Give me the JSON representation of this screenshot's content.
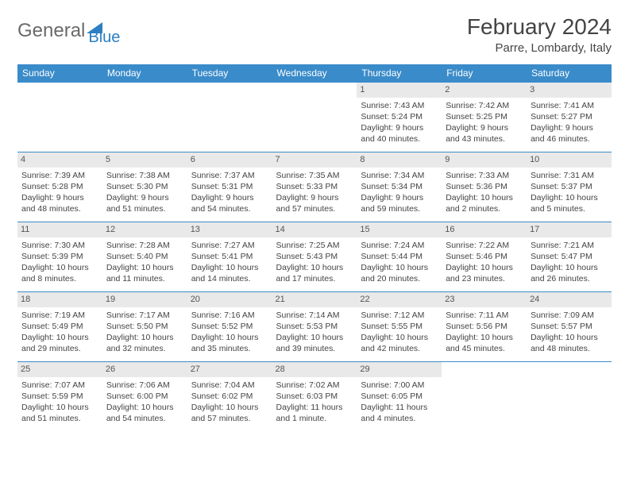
{
  "logo": {
    "part1": "General",
    "part2": "Blue"
  },
  "title": "February 2024",
  "location": "Parre, Lombardy, Italy",
  "colors": {
    "header_bg": "#3a8bc9",
    "header_text": "#ffffff",
    "daynum_bg": "#e9e9e9",
    "border": "#3a8bc9",
    "logo_blue": "#2d7fc1"
  },
  "weekdays": [
    "Sunday",
    "Monday",
    "Tuesday",
    "Wednesday",
    "Thursday",
    "Friday",
    "Saturday"
  ],
  "weeks": [
    [
      null,
      null,
      null,
      null,
      {
        "n": "1",
        "sunrise": "7:43 AM",
        "sunset": "5:24 PM",
        "daylight": "9 hours and 40 minutes."
      },
      {
        "n": "2",
        "sunrise": "7:42 AM",
        "sunset": "5:25 PM",
        "daylight": "9 hours and 43 minutes."
      },
      {
        "n": "3",
        "sunrise": "7:41 AM",
        "sunset": "5:27 PM",
        "daylight": "9 hours and 46 minutes."
      }
    ],
    [
      {
        "n": "4",
        "sunrise": "7:39 AM",
        "sunset": "5:28 PM",
        "daylight": "9 hours and 48 minutes."
      },
      {
        "n": "5",
        "sunrise": "7:38 AM",
        "sunset": "5:30 PM",
        "daylight": "9 hours and 51 minutes."
      },
      {
        "n": "6",
        "sunrise": "7:37 AM",
        "sunset": "5:31 PM",
        "daylight": "9 hours and 54 minutes."
      },
      {
        "n": "7",
        "sunrise": "7:35 AM",
        "sunset": "5:33 PM",
        "daylight": "9 hours and 57 minutes."
      },
      {
        "n": "8",
        "sunrise": "7:34 AM",
        "sunset": "5:34 PM",
        "daylight": "9 hours and 59 minutes."
      },
      {
        "n": "9",
        "sunrise": "7:33 AM",
        "sunset": "5:36 PM",
        "daylight": "10 hours and 2 minutes."
      },
      {
        "n": "10",
        "sunrise": "7:31 AM",
        "sunset": "5:37 PM",
        "daylight": "10 hours and 5 minutes."
      }
    ],
    [
      {
        "n": "11",
        "sunrise": "7:30 AM",
        "sunset": "5:39 PM",
        "daylight": "10 hours and 8 minutes."
      },
      {
        "n": "12",
        "sunrise": "7:28 AM",
        "sunset": "5:40 PM",
        "daylight": "10 hours and 11 minutes."
      },
      {
        "n": "13",
        "sunrise": "7:27 AM",
        "sunset": "5:41 PM",
        "daylight": "10 hours and 14 minutes."
      },
      {
        "n": "14",
        "sunrise": "7:25 AM",
        "sunset": "5:43 PM",
        "daylight": "10 hours and 17 minutes."
      },
      {
        "n": "15",
        "sunrise": "7:24 AM",
        "sunset": "5:44 PM",
        "daylight": "10 hours and 20 minutes."
      },
      {
        "n": "16",
        "sunrise": "7:22 AM",
        "sunset": "5:46 PM",
        "daylight": "10 hours and 23 minutes."
      },
      {
        "n": "17",
        "sunrise": "7:21 AM",
        "sunset": "5:47 PM",
        "daylight": "10 hours and 26 minutes."
      }
    ],
    [
      {
        "n": "18",
        "sunrise": "7:19 AM",
        "sunset": "5:49 PM",
        "daylight": "10 hours and 29 minutes."
      },
      {
        "n": "19",
        "sunrise": "7:17 AM",
        "sunset": "5:50 PM",
        "daylight": "10 hours and 32 minutes."
      },
      {
        "n": "20",
        "sunrise": "7:16 AM",
        "sunset": "5:52 PM",
        "daylight": "10 hours and 35 minutes."
      },
      {
        "n": "21",
        "sunrise": "7:14 AM",
        "sunset": "5:53 PM",
        "daylight": "10 hours and 39 minutes."
      },
      {
        "n": "22",
        "sunrise": "7:12 AM",
        "sunset": "5:55 PM",
        "daylight": "10 hours and 42 minutes."
      },
      {
        "n": "23",
        "sunrise": "7:11 AM",
        "sunset": "5:56 PM",
        "daylight": "10 hours and 45 minutes."
      },
      {
        "n": "24",
        "sunrise": "7:09 AM",
        "sunset": "5:57 PM",
        "daylight": "10 hours and 48 minutes."
      }
    ],
    [
      {
        "n": "25",
        "sunrise": "7:07 AM",
        "sunset": "5:59 PM",
        "daylight": "10 hours and 51 minutes."
      },
      {
        "n": "26",
        "sunrise": "7:06 AM",
        "sunset": "6:00 PM",
        "daylight": "10 hours and 54 minutes."
      },
      {
        "n": "27",
        "sunrise": "7:04 AM",
        "sunset": "6:02 PM",
        "daylight": "10 hours and 57 minutes."
      },
      {
        "n": "28",
        "sunrise": "7:02 AM",
        "sunset": "6:03 PM",
        "daylight": "11 hours and 1 minute."
      },
      {
        "n": "29",
        "sunrise": "7:00 AM",
        "sunset": "6:05 PM",
        "daylight": "11 hours and 4 minutes."
      },
      null,
      null
    ]
  ],
  "labels": {
    "sunrise": "Sunrise: ",
    "sunset": "Sunset: ",
    "daylight": "Daylight: "
  }
}
